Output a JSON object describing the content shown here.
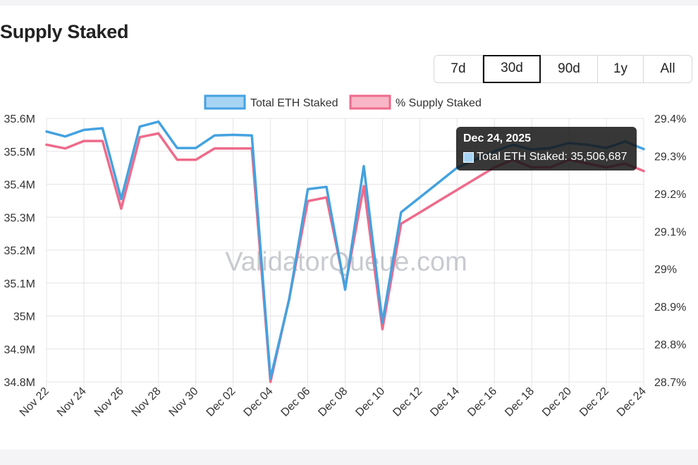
{
  "page": {
    "title": "Supply Staked"
  },
  "range_buttons": [
    {
      "label": "7d",
      "active": false
    },
    {
      "label": "30d",
      "active": true
    },
    {
      "label": "90d",
      "active": false
    },
    {
      "label": "1y",
      "active": false
    },
    {
      "label": "All",
      "active": false
    }
  ],
  "watermark": "ValidatorQueue.com",
  "tooltip": {
    "title": "Dec 24, 2025",
    "line": "Total ETH Staked: 35,506,687",
    "swatch_color": "#a8d4f4"
  },
  "colors": {
    "total_eth": "#44a2e0",
    "supply_pct": "#ee6b8b"
  },
  "chart_data": {
    "type": "line",
    "x": [
      "Nov 22",
      "Nov 23",
      "Nov 24",
      "Nov 25",
      "Nov 26",
      "Nov 27",
      "Nov 28",
      "Nov 29",
      "Nov 30",
      "Dec 01",
      "Dec 02",
      "Dec 03",
      "Dec 04",
      "Dec 05",
      "Dec 06",
      "Dec 07",
      "Dec 08",
      "Dec 09",
      "Dec 10",
      "Dec 11",
      "Dec 12",
      "Dec 13",
      "Dec 14",
      "Dec 15",
      "Dec 16",
      "Dec 17",
      "Dec 18",
      "Dec 19",
      "Dec 20",
      "Dec 21",
      "Dec 22",
      "Dec 23",
      "Dec 24"
    ],
    "x_tick_labels": [
      "Nov 22",
      "Nov 24",
      "Nov 26",
      "Nov 28",
      "Nov 30",
      "Dec 02",
      "Dec 04",
      "Dec 06",
      "Dec 08",
      "Dec 10",
      "Dec 12",
      "Dec 14",
      "Dec 16",
      "Dec 18",
      "Dec 20",
      "Dec 22",
      "Dec 24"
    ],
    "series": [
      {
        "name": "Total ETH Staked",
        "axis": "left",
        "color": "#44a2e0",
        "values": [
          35.56,
          35.545,
          35.565,
          35.57,
          35.355,
          35.575,
          35.59,
          35.51,
          35.51,
          35.548,
          35.55,
          35.548,
          34.81,
          35.05,
          35.385,
          35.392,
          35.08,
          35.455,
          34.98,
          35.315,
          35.36,
          35.405,
          35.45,
          35.475,
          35.5,
          35.52,
          35.505,
          35.51,
          35.525,
          35.52,
          35.51,
          35.53,
          35.506687
        ]
      },
      {
        "name": "% Supply Staked",
        "axis": "right",
        "color": "#ee6b8b",
        "values": [
          29.33,
          29.32,
          29.34,
          29.34,
          29.16,
          29.35,
          29.36,
          29.29,
          29.29,
          29.32,
          29.32,
          29.32,
          28.7,
          28.92,
          29.18,
          29.19,
          28.95,
          29.22,
          28.84,
          29.12,
          29.15,
          29.18,
          29.21,
          29.24,
          29.27,
          29.29,
          29.27,
          29.27,
          29.29,
          29.28,
          29.27,
          29.28,
          29.26
        ]
      }
    ],
    "y_left": {
      "min": 34.8,
      "max": 35.6,
      "ticks": [
        "35.6M",
        "35.5M",
        "35.4M",
        "35.3M",
        "35.2M",
        "35.1M",
        "35M",
        "34.9M",
        "34.8M"
      ]
    },
    "y_right": {
      "min": 28.7,
      "max": 29.4,
      "ticks": [
        "29.4%",
        "29.3%",
        "29.2%",
        "29.1%",
        "29%",
        "28.9%",
        "28.8%",
        "28.7%"
      ]
    },
    "grid": true,
    "legend": "top-center"
  }
}
